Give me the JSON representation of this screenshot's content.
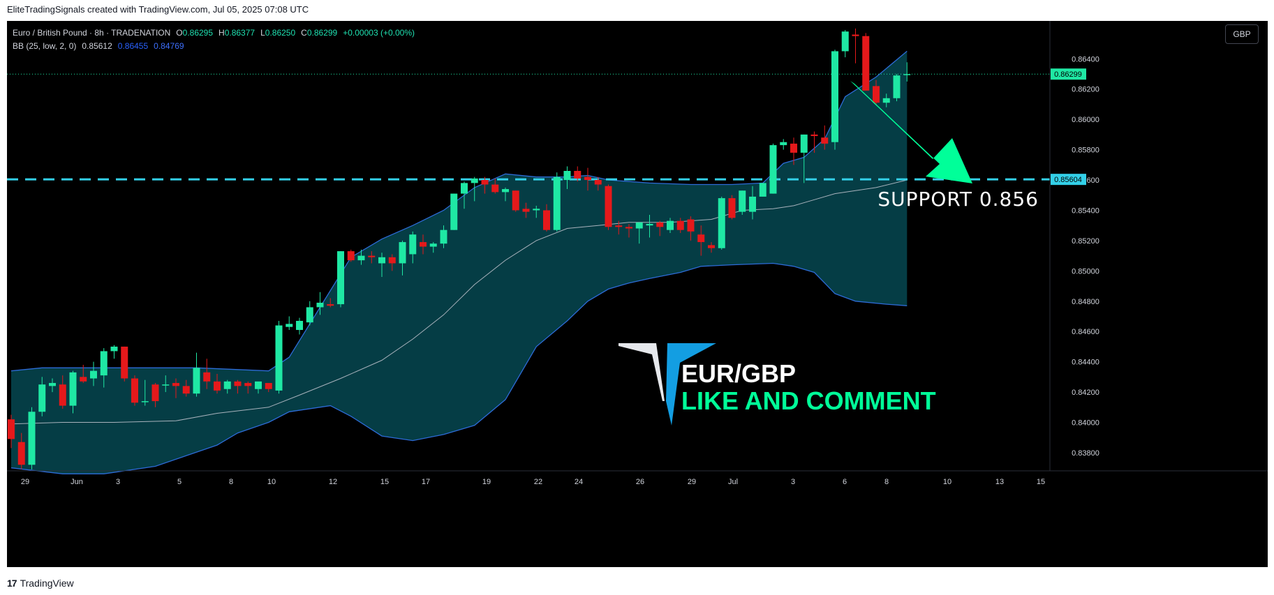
{
  "caption": "EliteTradingSignals created with TradingView.com, Jul 05, 2025 07:08 UTC",
  "footer": {
    "logo": "17",
    "name": "TradingView"
  },
  "legend": {
    "symbol": "Euro / British Pound · 8h · TRADENATION",
    "open_label": "O",
    "open": "0.86295",
    "high_label": "H",
    "high": "0.86377",
    "low_label": "L",
    "low": "0.86250",
    "close_label": "C",
    "close": "0.86299",
    "change": "+0.00003 (+0.00%)",
    "bb_label": "BB (25, low, 2, 0)",
    "bb_basis": "0.85612",
    "bb_upper": "0.86455",
    "bb_lower": "0.84769"
  },
  "currency_button": "GBP",
  "annotations": {
    "support_text": "SUPPORT  0.856",
    "brand_line1": "EUR/GBP",
    "brand_line2": "LIKE AND COMMENT"
  },
  "colors": {
    "up": "#1fe8a4",
    "down": "#e5191b",
    "band_fill": "#053d45",
    "band_line": "#2d6bd6",
    "basis": "#a8b2bc",
    "support": "#33d0e8",
    "arrow": "#00ff99",
    "price_label": "#1fe8a4",
    "support_label": "#33d0e8"
  },
  "chart_data": {
    "type": "candlestick",
    "x_ticks": [
      "29",
      "Jun",
      "3",
      "5",
      "8",
      "10",
      "12",
      "15",
      "17",
      "19",
      "22",
      "24",
      "26",
      "29",
      "Jul",
      "3",
      "6",
      "8",
      "10",
      "13",
      "15"
    ],
    "y_ticks": [
      "0.83800",
      "0.84000",
      "0.84200",
      "0.84400",
      "0.84600",
      "0.84800",
      "0.85000",
      "0.85200",
      "0.85400",
      "0.85600",
      "0.85800",
      "0.86000",
      "0.86200",
      "0.86400"
    ],
    "ylim": [
      0.8368,
      0.8665
    ],
    "current_price": 0.86299,
    "current_price_label": "0.86299",
    "support_level": 0.85604,
    "support_label": "0.85604",
    "candles": [
      [
        0.8402,
        0.8405,
        0.8383,
        0.8389
      ],
      [
        0.8387,
        0.8393,
        0.8369,
        0.8372
      ],
      [
        0.8372,
        0.841,
        0.8369,
        0.8407
      ],
      [
        0.8407,
        0.843,
        0.8404,
        0.8425
      ],
      [
        0.8424,
        0.8429,
        0.842,
        0.8426
      ],
      [
        0.8425,
        0.8431,
        0.8409,
        0.8411
      ],
      [
        0.8411,
        0.8434,
        0.8406,
        0.8433
      ],
      [
        0.843,
        0.8438,
        0.8426,
        0.8427
      ],
      [
        0.8429,
        0.844,
        0.8424,
        0.8434
      ],
      [
        0.8431,
        0.8449,
        0.8423,
        0.8447
      ],
      [
        0.8447,
        0.8451,
        0.8442,
        0.845
      ],
      [
        0.845,
        0.845,
        0.8427,
        0.8429
      ],
      [
        0.8429,
        0.8431,
        0.8411,
        0.8413
      ],
      [
        0.8414,
        0.8428,
        0.8411,
        0.8414
      ],
      [
        0.8425,
        0.8426,
        0.841,
        0.8414
      ],
      [
        0.8425,
        0.8431,
        0.842,
        0.8425
      ],
      [
        0.8426,
        0.8429,
        0.8416,
        0.8424
      ],
      [
        0.8424,
        0.8428,
        0.8417,
        0.8419
      ],
      [
        0.8419,
        0.8446,
        0.8417,
        0.8436
      ],
      [
        0.8433,
        0.8442,
        0.8422,
        0.8427
      ],
      [
        0.8427,
        0.8432,
        0.8419,
        0.8421
      ],
      [
        0.8422,
        0.8428,
        0.8419,
        0.8427
      ],
      [
        0.8427,
        0.8428,
        0.8419,
        0.8424
      ],
      [
        0.8426,
        0.8427,
        0.8419,
        0.8424
      ],
      [
        0.8422,
        0.8425,
        0.8419,
        0.8427
      ],
      [
        0.8426,
        0.8426,
        0.842,
        0.8422
      ],
      [
        0.8421,
        0.8467,
        0.8419,
        0.8464
      ],
      [
        0.8463,
        0.847,
        0.8461,
        0.8465
      ],
      [
        0.8461,
        0.8469,
        0.8458,
        0.8467
      ],
      [
        0.8466,
        0.848,
        0.8464,
        0.8476
      ],
      [
        0.8476,
        0.8486,
        0.8471,
        0.8479
      ],
      [
        0.8478,
        0.8482,
        0.8476,
        0.8477
      ],
      [
        0.8478,
        0.8513,
        0.8476,
        0.8513
      ],
      [
        0.8513,
        0.8514,
        0.8506,
        0.8507
      ],
      [
        0.8507,
        0.8514,
        0.8504,
        0.851
      ],
      [
        0.851,
        0.8513,
        0.8505,
        0.8509
      ],
      [
        0.8505,
        0.8512,
        0.8496,
        0.8509
      ],
      [
        0.8509,
        0.8511,
        0.85,
        0.8505
      ],
      [
        0.8505,
        0.852,
        0.8497,
        0.8519
      ],
      [
        0.8511,
        0.8526,
        0.8505,
        0.8524
      ],
      [
        0.8519,
        0.8524,
        0.8511,
        0.8516
      ],
      [
        0.8516,
        0.8519,
        0.8512,
        0.8518
      ],
      [
        0.8518,
        0.853,
        0.8515,
        0.8527
      ],
      [
        0.8527,
        0.8551,
        0.8527,
        0.8551
      ],
      [
        0.8551,
        0.8559,
        0.8541,
        0.8558
      ],
      [
        0.8558,
        0.8562,
        0.8546,
        0.8561
      ],
      [
        0.856,
        0.8562,
        0.8551,
        0.8557
      ],
      [
        0.8557,
        0.8561,
        0.8551,
        0.8552
      ],
      [
        0.8552,
        0.8555,
        0.8546,
        0.8554
      ],
      [
        0.8553,
        0.8553,
        0.8539,
        0.854
      ],
      [
        0.8541,
        0.8545,
        0.8535,
        0.8539
      ],
      [
        0.854,
        0.8543,
        0.8535,
        0.8541
      ],
      [
        0.854,
        0.8544,
        0.8526,
        0.8527
      ],
      [
        0.8527,
        0.8565,
        0.8526,
        0.8562
      ],
      [
        0.856,
        0.8569,
        0.8554,
        0.8566
      ],
      [
        0.8566,
        0.8569,
        0.8559,
        0.8561
      ],
      [
        0.8562,
        0.8568,
        0.8553,
        0.856
      ],
      [
        0.856,
        0.8562,
        0.8553,
        0.8557
      ],
      [
        0.8556,
        0.8557,
        0.8527,
        0.8529
      ],
      [
        0.853,
        0.8533,
        0.8524,
        0.8529
      ],
      [
        0.8529,
        0.8531,
        0.8522,
        0.8528
      ],
      [
        0.8528,
        0.8532,
        0.8518,
        0.8532
      ],
      [
        0.853,
        0.8537,
        0.8522,
        0.8531
      ],
      [
        0.8532,
        0.8533,
        0.8523,
        0.8529
      ],
      [
        0.8527,
        0.8535,
        0.8525,
        0.8533
      ],
      [
        0.8533,
        0.8535,
        0.8525,
        0.8527
      ],
      [
        0.8534,
        0.8536,
        0.852,
        0.8526
      ],
      [
        0.8524,
        0.853,
        0.851,
        0.8519
      ],
      [
        0.8517,
        0.8519,
        0.8512,
        0.8515
      ],
      [
        0.8515,
        0.8549,
        0.8514,
        0.8548
      ],
      [
        0.8548,
        0.855,
        0.8534,
        0.8535
      ],
      [
        0.8539,
        0.8553,
        0.8537,
        0.8553
      ],
      [
        0.8539,
        0.8556,
        0.8534,
        0.8549
      ],
      [
        0.8549,
        0.8558,
        0.8549,
        0.8558
      ],
      [
        0.8551,
        0.8584,
        0.8551,
        0.8583
      ],
      [
        0.8583,
        0.8587,
        0.858,
        0.8585
      ],
      [
        0.8584,
        0.8588,
        0.857,
        0.8578
      ],
      [
        0.8578,
        0.859,
        0.8558,
        0.859
      ],
      [
        0.859,
        0.8592,
        0.8578,
        0.8589
      ],
      [
        0.8588,
        0.8596,
        0.858,
        0.8584
      ],
      [
        0.8585,
        0.8646,
        0.858,
        0.8645
      ],
      [
        0.8645,
        0.8659,
        0.8641,
        0.8658
      ],
      [
        0.8656,
        0.866,
        0.8637,
        0.8655
      ],
      [
        0.8655,
        0.8657,
        0.8619,
        0.8619
      ],
      [
        0.8622,
        0.8626,
        0.861,
        0.8611
      ],
      [
        0.8611,
        0.8617,
        0.8608,
        0.8614
      ],
      [
        0.8614,
        0.863,
        0.8612,
        0.8629
      ],
      [
        0.86295,
        0.86377,
        0.8625,
        0.86299
      ]
    ],
    "bb_upper": [
      [
        0,
        0.8434
      ],
      [
        3,
        0.8436
      ],
      [
        9,
        0.8436
      ],
      [
        18,
        0.8436
      ],
      [
        25,
        0.8434
      ],
      [
        27,
        0.8443
      ],
      [
        30,
        0.8476
      ],
      [
        33,
        0.8509
      ],
      [
        36,
        0.8521
      ],
      [
        39,
        0.853
      ],
      [
        42,
        0.854
      ],
      [
        45,
        0.8555
      ],
      [
        48,
        0.8564
      ],
      [
        51,
        0.8562
      ],
      [
        54,
        0.8562
      ],
      [
        56,
        0.8563
      ],
      [
        58,
        0.856
      ],
      [
        62,
        0.8558
      ],
      [
        66,
        0.8557
      ],
      [
        70,
        0.8557
      ],
      [
        73,
        0.8558
      ],
      [
        75,
        0.8571
      ],
      [
        77,
        0.8575
      ],
      [
        79,
        0.8587
      ],
      [
        81,
        0.8615
      ],
      [
        84,
        0.8628
      ],
      [
        87,
        0.8645
      ]
    ],
    "bb_basis": [
      [
        0,
        0.8399
      ],
      [
        5,
        0.84
      ],
      [
        10,
        0.84
      ],
      [
        16,
        0.8401
      ],
      [
        20,
        0.8406
      ],
      [
        25,
        0.841
      ],
      [
        28,
        0.8418
      ],
      [
        32,
        0.8429
      ],
      [
        36,
        0.8441
      ],
      [
        39,
        0.8455
      ],
      [
        42,
        0.8471
      ],
      [
        45,
        0.8491
      ],
      [
        48,
        0.8507
      ],
      [
        51,
        0.852
      ],
      [
        54,
        0.8528
      ],
      [
        57,
        0.853
      ],
      [
        60,
        0.8532
      ],
      [
        64,
        0.8532
      ],
      [
        68,
        0.8534
      ],
      [
        71,
        0.854
      ],
      [
        74,
        0.8541
      ],
      [
        76,
        0.8543
      ],
      [
        78,
        0.8547
      ],
      [
        80,
        0.8551
      ],
      [
        82,
        0.8553
      ],
      [
        84,
        0.8555
      ],
      [
        87,
        0.856
      ]
    ],
    "bb_lower": [
      [
        0,
        0.837
      ],
      [
        5,
        0.8366
      ],
      [
        9,
        0.8366
      ],
      [
        14,
        0.8371
      ],
      [
        17,
        0.8378
      ],
      [
        20,
        0.8385
      ],
      [
        22,
        0.8393
      ],
      [
        25,
        0.84
      ],
      [
        27,
        0.8407
      ],
      [
        31,
        0.8411
      ],
      [
        33,
        0.8404
      ],
      [
        36,
        0.8391
      ],
      [
        39,
        0.8388
      ],
      [
        42,
        0.8392
      ],
      [
        45,
        0.8398
      ],
      [
        48,
        0.8415
      ],
      [
        51,
        0.845
      ],
      [
        54,
        0.8467
      ],
      [
        56,
        0.848
      ],
      [
        58,
        0.8488
      ],
      [
        60,
        0.8492
      ],
      [
        62,
        0.8495
      ],
      [
        65,
        0.8499
      ],
      [
        67,
        0.8503
      ],
      [
        70,
        0.8504
      ],
      [
        74,
        0.8505
      ],
      [
        76,
        0.8503
      ],
      [
        78,
        0.8499
      ],
      [
        79,
        0.8492
      ],
      [
        80,
        0.8485
      ],
      [
        82,
        0.848
      ],
      [
        85,
        0.8478
      ],
      [
        87,
        0.8477
      ]
    ]
  }
}
